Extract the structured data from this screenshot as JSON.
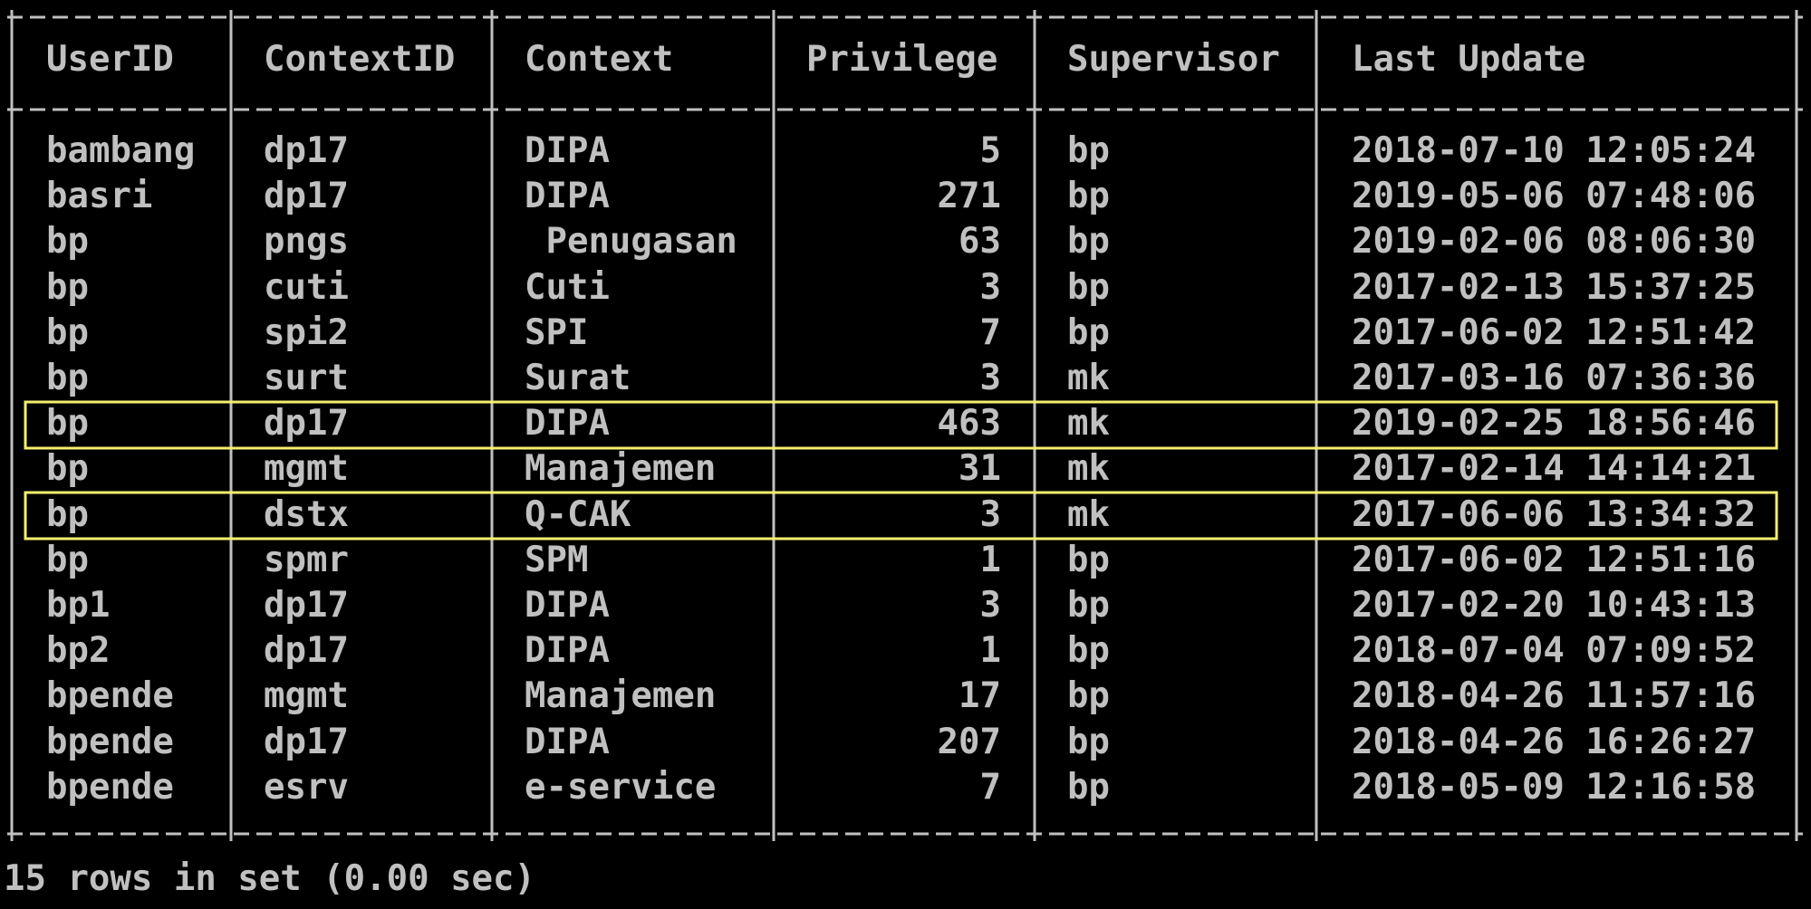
{
  "table": {
    "columns": [
      "UserID",
      "ContextID",
      "Context",
      "Privilege",
      "Supervisor",
      "Last Update"
    ],
    "rows": [
      [
        "bambang",
        "dp17",
        "DIPA",
        5,
        "bp",
        "2018-07-10 12:05:24"
      ],
      [
        "basri",
        "dp17",
        "DIPA",
        271,
        "bp",
        "2019-05-06 07:48:06"
      ],
      [
        "bp",
        "pngs",
        " Penugasan",
        63,
        "bp",
        "2019-02-06 08:06:30"
      ],
      [
        "bp",
        "cuti",
        "Cuti",
        3,
        "bp",
        "2017-02-13 15:37:25"
      ],
      [
        "bp",
        "spi2",
        "SPI",
        7,
        "bp",
        "2017-06-02 12:51:42"
      ],
      [
        "bp",
        "surt",
        "Surat",
        3,
        "mk",
        "2017-03-16 07:36:36"
      ],
      [
        "bp",
        "dp17",
        "DIPA",
        463,
        "mk",
        "2019-02-25 18:56:46"
      ],
      [
        "bp",
        "mgmt",
        "Manajemen",
        31,
        "mk",
        "2017-02-14 14:14:21"
      ],
      [
        "bp",
        "dstx",
        "Q-CAK",
        3,
        "mk",
        "2017-06-06 13:34:32"
      ],
      [
        "bp",
        "spmr",
        "SPM",
        1,
        "bp",
        "2017-06-02 12:51:16"
      ],
      [
        "bp1",
        "dp17",
        "DIPA",
        3,
        "bp",
        "2017-02-20 10:43:13"
      ],
      [
        "bp2",
        "dp17",
        "DIPA",
        1,
        "bp",
        "2018-07-04 07:09:52"
      ],
      [
        "bpende",
        "mgmt",
        "Manajemen",
        17,
        "bp",
        "2018-04-26 11:57:16"
      ],
      [
        "bpende",
        "dp17",
        "DIPA",
        207,
        "bp",
        "2018-04-26 16:26:27"
      ],
      [
        "bpende",
        "esrv",
        "e-service",
        7,
        "bp",
        "2018-05-09 12:16:58"
      ]
    ]
  },
  "footer": "15 rows in set (0.00 sec)"
}
